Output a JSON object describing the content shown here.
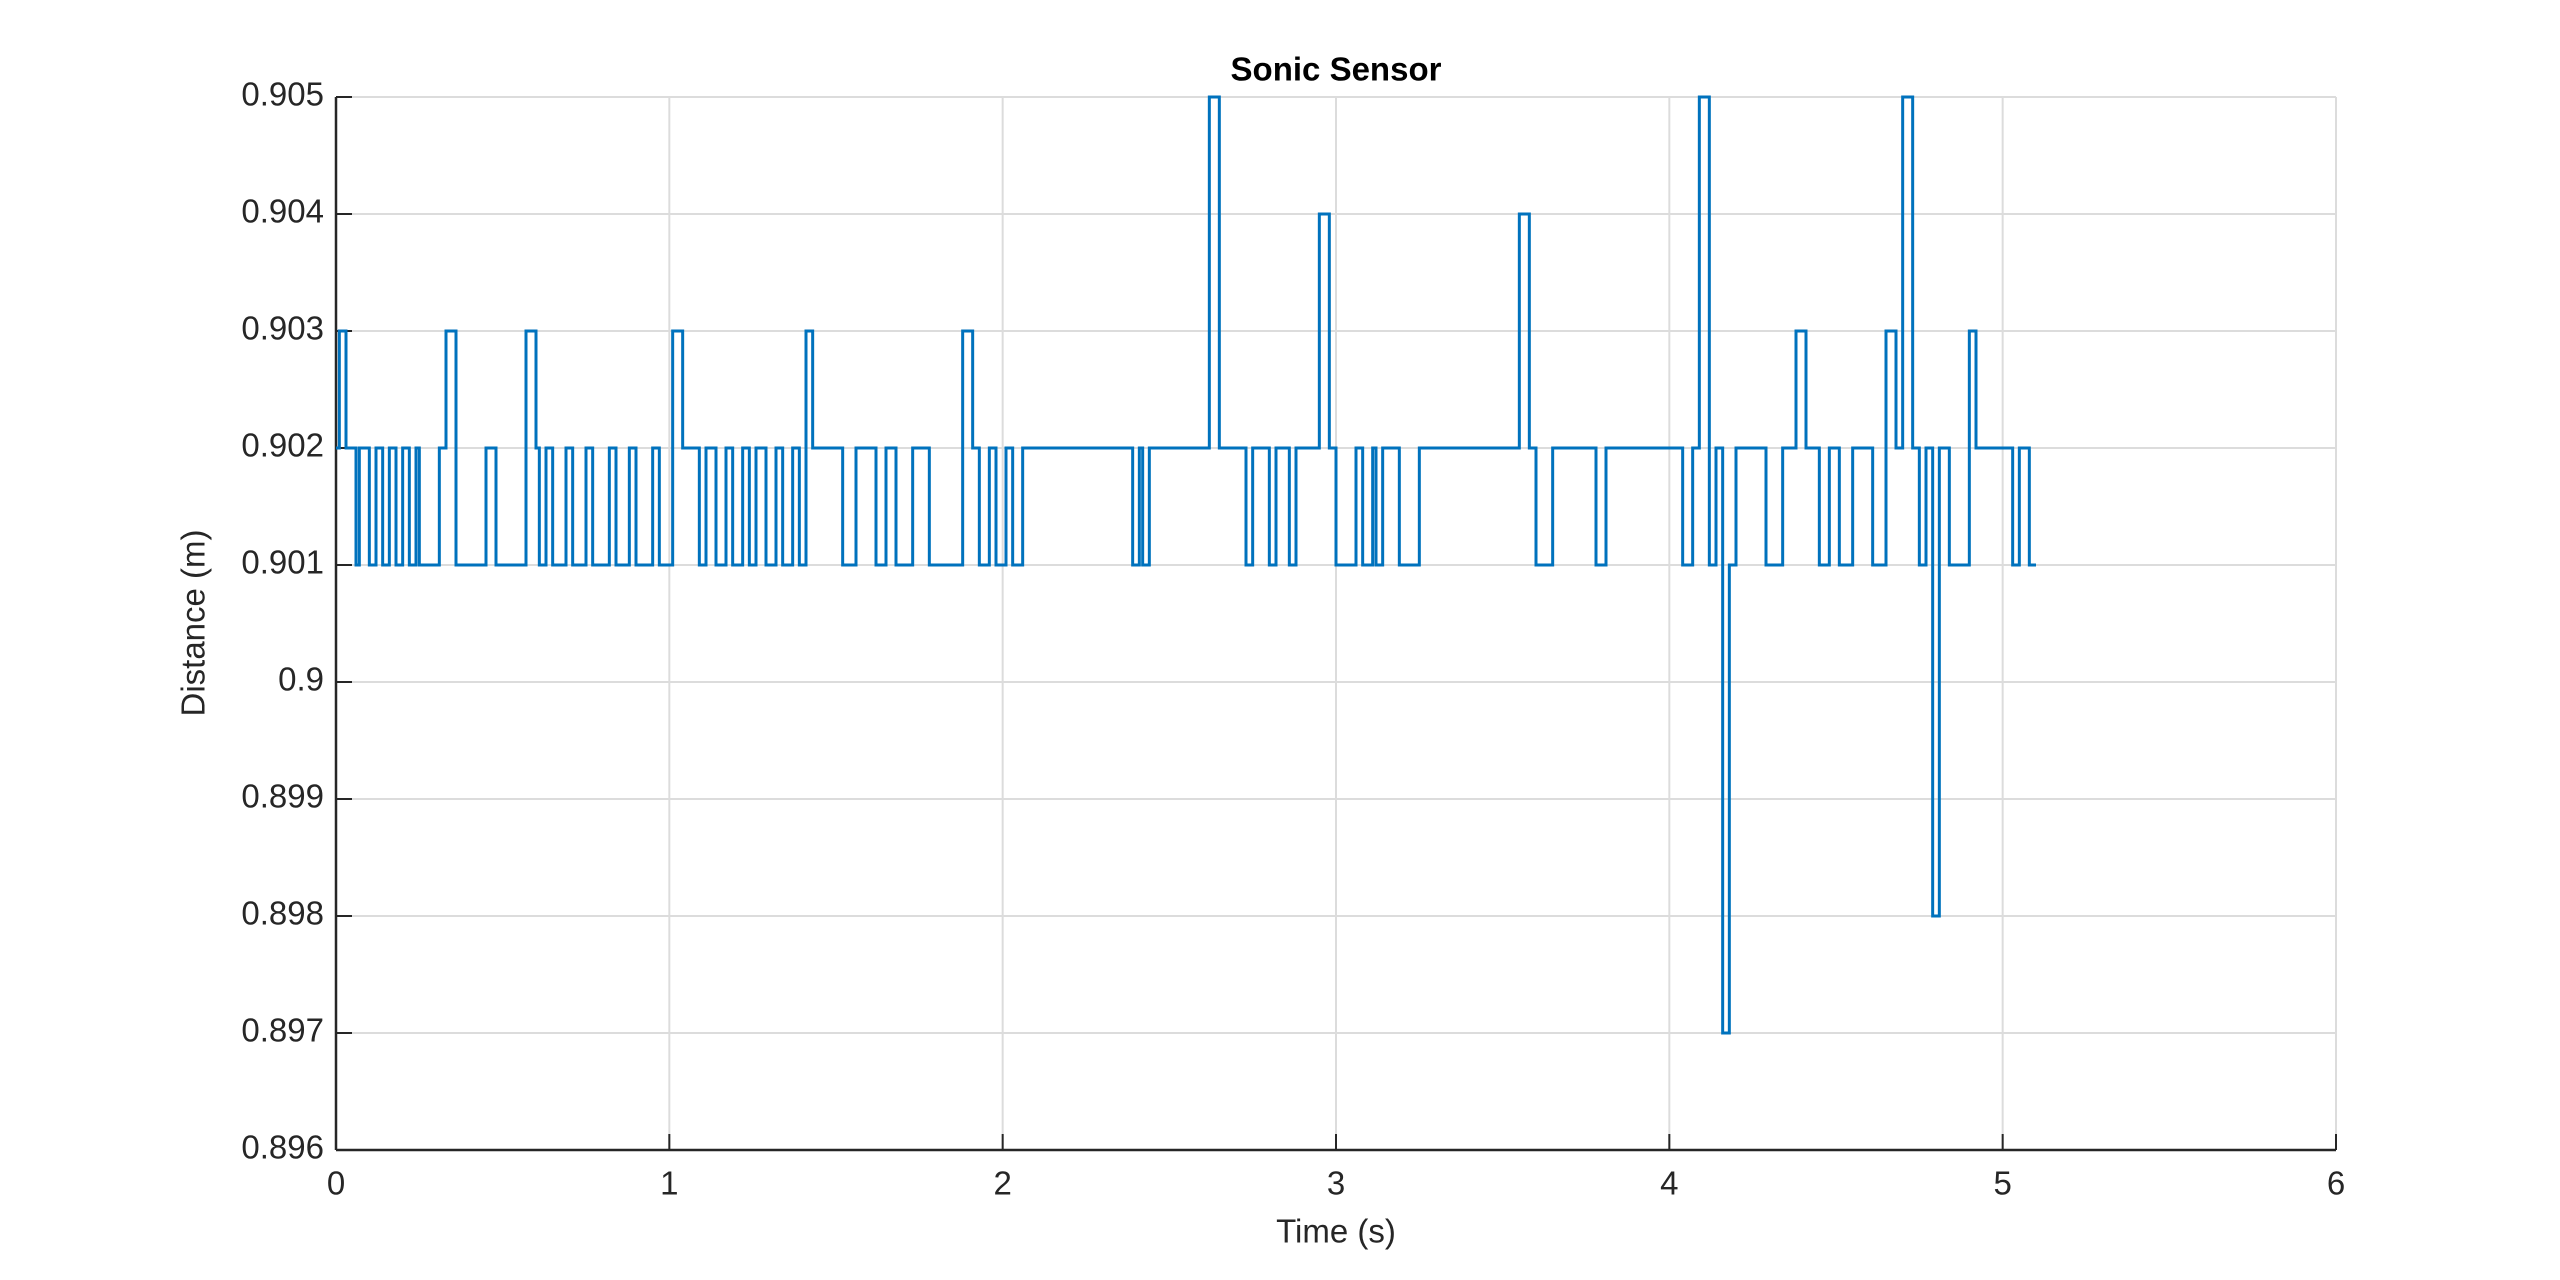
{
  "chart_data": {
    "type": "step",
    "title": "Sonic Sensor",
    "xlabel": "Time (s)",
    "ylabel": "Distance (m)",
    "x": [
      0.0,
      0.01,
      0.03,
      0.06,
      0.07,
      0.1,
      0.12,
      0.14,
      0.16,
      0.18,
      0.2,
      0.22,
      0.24,
      0.25,
      0.31,
      0.33,
      0.36,
      0.45,
      0.48,
      0.57,
      0.6,
      0.61,
      0.63,
      0.65,
      0.69,
      0.71,
      0.75,
      0.77,
      0.82,
      0.84,
      0.88,
      0.9,
      0.95,
      0.97,
      1.01,
      1.04,
      1.09,
      1.11,
      1.14,
      1.17,
      1.19,
      1.22,
      1.24,
      1.26,
      1.29,
      1.32,
      1.34,
      1.37,
      1.39,
      1.41,
      1.43,
      1.52,
      1.56,
      1.62,
      1.65,
      1.68,
      1.73,
      1.78,
      1.88,
      1.91,
      1.93,
      1.96,
      1.98,
      2.01,
      2.03,
      2.06,
      2.39,
      2.41,
      2.42,
      2.44,
      2.62,
      2.65,
      2.73,
      2.75,
      2.8,
      2.82,
      2.86,
      2.88,
      2.95,
      2.98,
      3.0,
      3.06,
      3.08,
      3.11,
      3.12,
      3.14,
      3.19,
      3.25,
      3.55,
      3.58,
      3.6,
      3.65,
      3.78,
      3.81,
      4.04,
      4.07,
      4.09,
      4.12,
      4.14,
      4.16,
      4.18,
      4.2,
      4.29,
      4.34,
      4.38,
      4.41,
      4.45,
      4.48,
      4.51,
      4.55,
      4.61,
      4.65,
      4.68,
      4.7,
      4.73,
      4.75,
      4.77,
      4.79,
      4.81,
      4.84,
      4.9,
      4.92,
      5.03,
      5.05,
      5.08,
      5.1
    ],
    "series": [
      {
        "color": "#0072bd",
        "values": [
          0.902,
          0.903,
          0.902,
          0.901,
          0.902,
          0.901,
          0.902,
          0.901,
          0.902,
          0.901,
          0.902,
          0.901,
          0.902,
          0.901,
          0.902,
          0.903,
          0.901,
          0.902,
          0.901,
          0.903,
          0.902,
          0.901,
          0.902,
          0.901,
          0.902,
          0.901,
          0.902,
          0.901,
          0.902,
          0.901,
          0.902,
          0.901,
          0.902,
          0.901,
          0.903,
          0.902,
          0.901,
          0.902,
          0.901,
          0.902,
          0.901,
          0.902,
          0.901,
          0.902,
          0.901,
          0.902,
          0.901,
          0.902,
          0.901,
          0.903,
          0.902,
          0.901,
          0.902,
          0.901,
          0.902,
          0.901,
          0.902,
          0.901,
          0.903,
          0.902,
          0.901,
          0.902,
          0.901,
          0.902,
          0.901,
          0.902,
          0.901,
          0.902,
          0.901,
          0.902,
          0.905,
          0.902,
          0.901,
          0.902,
          0.901,
          0.902,
          0.901,
          0.902,
          0.904,
          0.902,
          0.901,
          0.902,
          0.901,
          0.902,
          0.901,
          0.902,
          0.901,
          0.902,
          0.904,
          0.902,
          0.901,
          0.902,
          0.901,
          0.902,
          0.901,
          0.902,
          0.905,
          0.901,
          0.902,
          0.897,
          0.901,
          0.902,
          0.901,
          0.902,
          0.903,
          0.902,
          0.901,
          0.902,
          0.901,
          0.902,
          0.901,
          0.903,
          0.902,
          0.905,
          0.902,
          0.901,
          0.902,
          0.898,
          0.902,
          0.901,
          0.903,
          0.902,
          0.901,
          0.902,
          0.901,
          0.901
        ]
      }
    ],
    "xlim": [
      0,
      6
    ],
    "xticks": [
      0,
      1,
      2,
      3,
      4,
      5,
      6
    ],
    "ylim": [
      0.896,
      0.905
    ],
    "yticks": [
      0.896,
      0.897,
      0.898,
      0.899,
      0.9,
      0.901,
      0.902,
      0.903,
      0.904,
      0.905
    ],
    "grid": true
  }
}
